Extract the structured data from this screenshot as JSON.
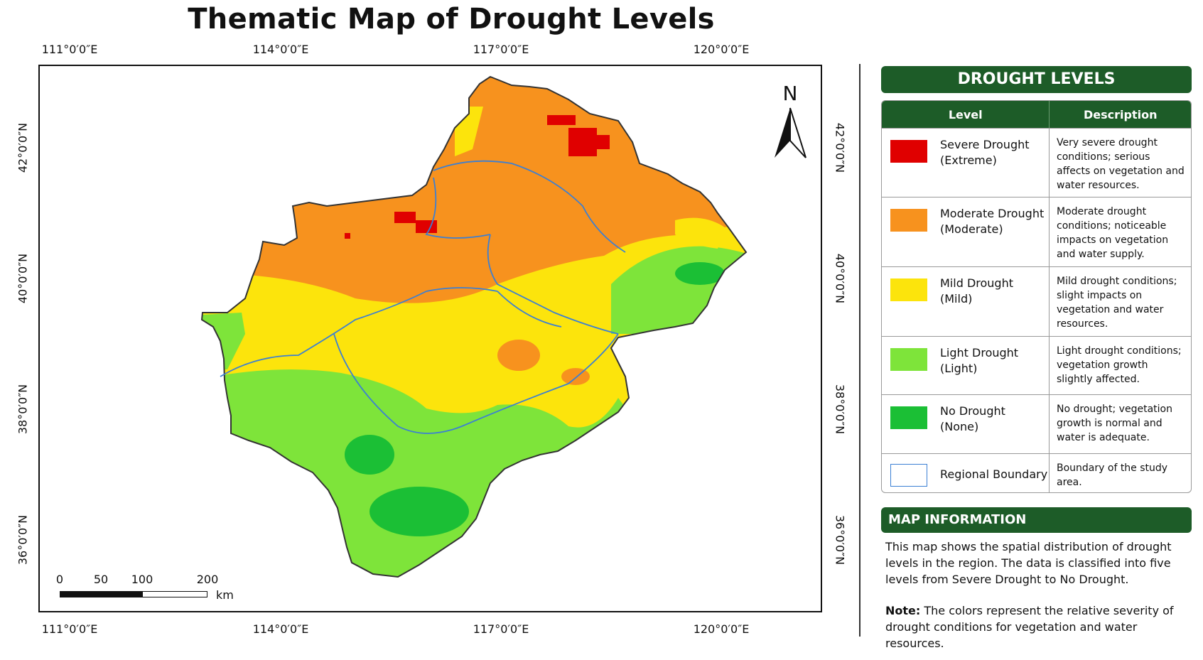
{
  "title": "Thematic Map of Drought Levels",
  "longitude_ticks": [
    "111°0′0″E",
    "114°0′0″E",
    "117°0′0″E",
    "120°0′0″E"
  ],
  "latitude_ticks": [
    "42°0′0″N",
    "40°0′0″N",
    "38°0′0″N",
    "36°0′0″N"
  ],
  "north_arrow": {
    "letter": "N",
    "icon": "north-arrow-icon"
  },
  "scale_bar": {
    "ticks": [
      "0",
      "50",
      "100",
      "200"
    ],
    "unit": "km"
  },
  "legend": {
    "title": "DROUGHT LEVELS",
    "col_level": "Level",
    "col_description": "Description",
    "items": [
      {
        "name": "Severe Drought",
        "sub": "(Extreme)",
        "color": "#e00000",
        "desc": "Very severe drought conditions; serious affects on vegetation and water resources."
      },
      {
        "name": "Moderate Drought",
        "sub": "(Moderate)",
        "color": "#f7921e",
        "desc": "Moderate drought conditions; noticeable impacts on vegetation and water supply."
      },
      {
        "name": "Mild Drought",
        "sub": "(Mild)",
        "color": "#fce40c",
        "desc": "Mild drought conditions; slight impacts on vegetation and water resources."
      },
      {
        "name": "Light Drought",
        "sub": "(Light)",
        "color": "#7ee43a",
        "desc": "Light drought conditions; vegetation growth slightly affected."
      },
      {
        "name": "No Drought",
        "sub": "(None)",
        "color": "#1bbf35",
        "desc": "No drought; vegetation growth is normal and water is adequate."
      },
      {
        "name": "Regional Boundary",
        "sub": "",
        "color": "#3b7fd4",
        "desc": "Boundary of the study area."
      }
    ]
  },
  "map_info": {
    "title": "MAP INFORMATION",
    "body": "This map shows the spatial distribution of drought levels in the region. The data is classified into five levels from Severe Drought to No Drought.",
    "note_label": "Note:",
    "note_text": " The colors represent the relative severity of drought conditions for vegetation and water resources."
  }
}
